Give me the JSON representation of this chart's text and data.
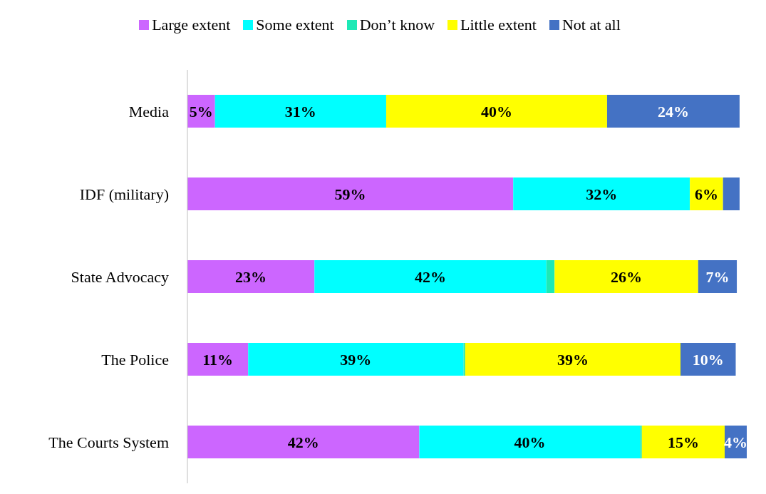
{
  "chart_data": {
    "type": "bar",
    "orientation": "horizontal",
    "stacked": true,
    "legend": "top",
    "categories": [
      "Media",
      "IDF (military)",
      "State Advocacy",
      "The Police",
      "The Courts System"
    ],
    "series": [
      {
        "name": "Large extent",
        "color": "#cc66ff",
        "values": [
          5,
          59,
          23,
          11,
          42
        ],
        "value_labels": [
          "5%",
          "59%",
          "23%",
          "11%",
          "42%"
        ]
      },
      {
        "name": "Some extent",
        "color": "#00ffff",
        "values": [
          31,
          32,
          42,
          39,
          40
        ],
        "value_labels": [
          "31%",
          "32%",
          "42%",
          "39%",
          "40%"
        ]
      },
      {
        "name": "Don’t know",
        "color": "#1de9b6",
        "values": [
          0,
          0,
          1.5,
          0.3,
          0.3
        ],
        "value_labels": [
          null,
          null,
          null,
          null,
          null
        ]
      },
      {
        "name": "Little extent",
        "color": "#ffff00",
        "values": [
          40,
          6,
          26,
          39,
          15
        ],
        "value_labels": [
          "40%",
          "6%",
          "26%",
          "39%",
          "15%"
        ]
      },
      {
        "name": "Not at all",
        "color": "#4472c4",
        "values": [
          24,
          3,
          7,
          10,
          4
        ],
        "value_labels": [
          "24%",
          null,
          "7%",
          "10%",
          "4%"
        ]
      }
    ]
  }
}
